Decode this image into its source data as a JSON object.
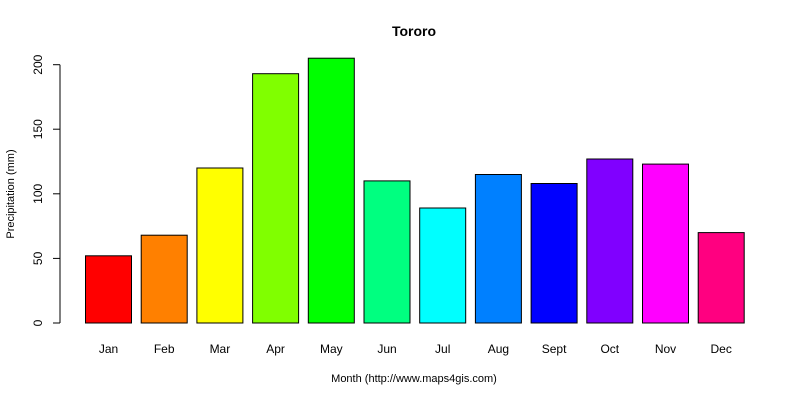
{
  "chart_data": {
    "type": "bar",
    "title": "Tororo",
    "xlabel": "Month (http://www.maps4gis.com)",
    "ylabel": "Precipitation (mm)",
    "categories": [
      "Jan",
      "Feb",
      "Mar",
      "Apr",
      "May",
      "Jun",
      "Jul",
      "Aug",
      "Sept",
      "Oct",
      "Nov",
      "Dec"
    ],
    "values": [
      52,
      68,
      120,
      193,
      205,
      110,
      89,
      115,
      108,
      127,
      123,
      70
    ],
    "colors": [
      "#FF0000",
      "#FF8000",
      "#FFFF00",
      "#80FF00",
      "#00FF00",
      "#00FF80",
      "#00FFFF",
      "#0080FF",
      "#0000FF",
      "#8000FF",
      "#FF00FF",
      "#FF0080"
    ],
    "ylim": [
      0,
      210
    ],
    "yticks": [
      0,
      50,
      100,
      150,
      200
    ],
    "grid": false,
    "legend": "none"
  }
}
